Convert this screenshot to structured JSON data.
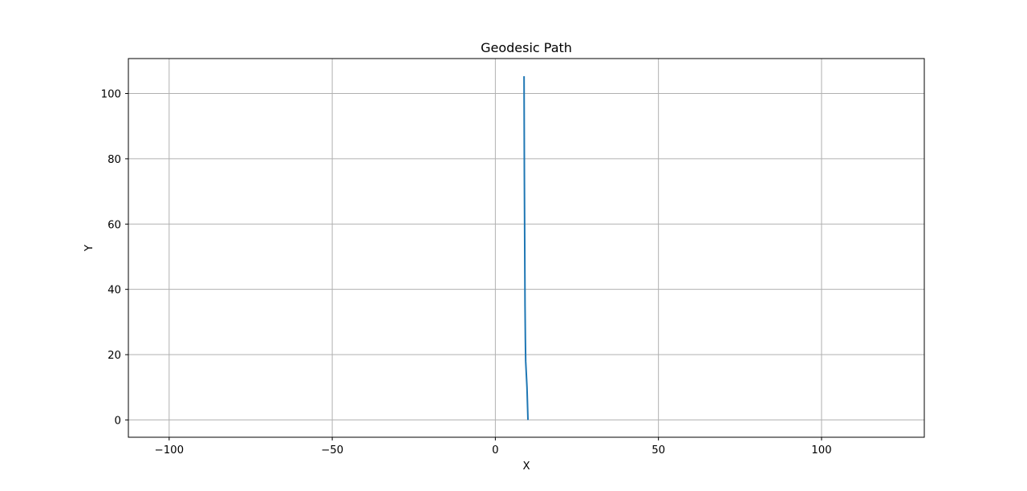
{
  "chart_data": {
    "type": "line",
    "title": "Geodesic Path",
    "xlabel": "X",
    "ylabel": "Y",
    "xlim": [
      -112.5,
      131.5
    ],
    "ylim": [
      -5.3,
      110.7
    ],
    "xticks": [
      -100,
      -50,
      0,
      50,
      100
    ],
    "yticks": [
      0,
      20,
      40,
      60,
      80,
      100
    ],
    "xtick_labels": [
      "−100",
      "−50",
      "0",
      "50",
      "100"
    ],
    "ytick_labels": [
      "0",
      "20",
      "40",
      "60",
      "80",
      "100"
    ],
    "grid": true,
    "series": [
      {
        "color": "#1f77b4",
        "x": [
          10.0,
          9.7,
          9.3,
          9.2,
          9.1,
          9.05,
          9.0,
          8.95,
          8.9,
          8.85,
          8.8
        ],
        "y": [
          0,
          10,
          18,
          25,
          35,
          45,
          55,
          65,
          75,
          90,
          105.3
        ]
      }
    ]
  }
}
